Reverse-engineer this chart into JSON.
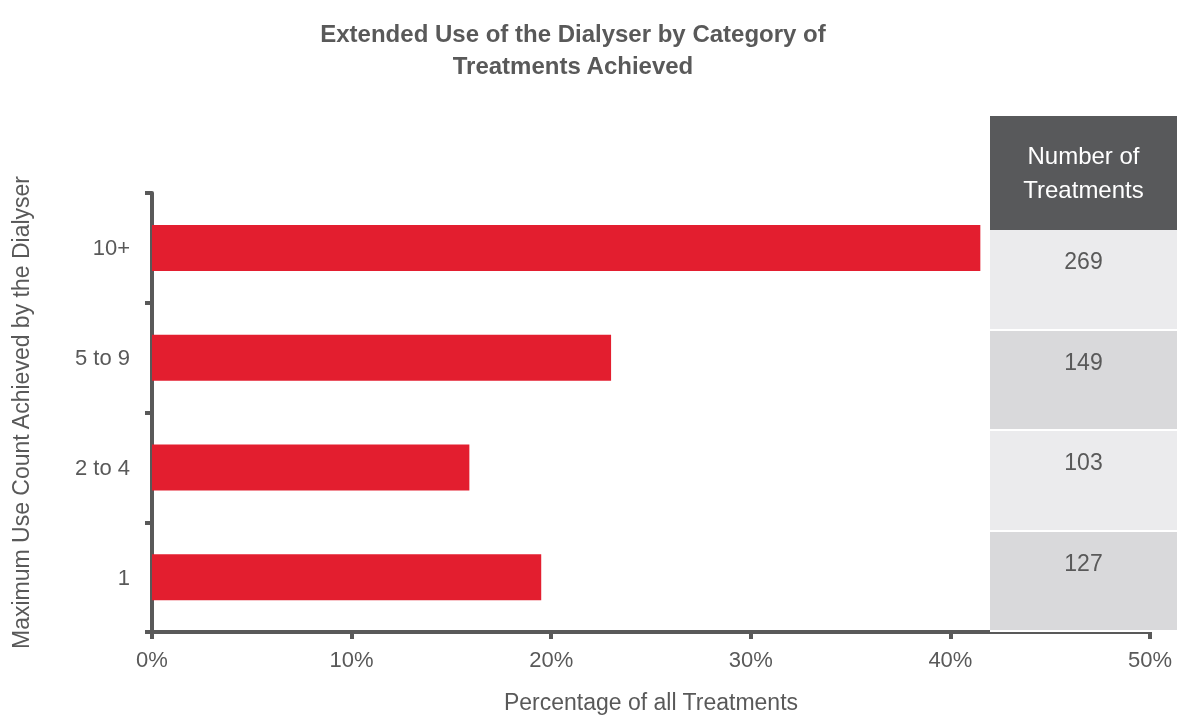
{
  "chart_data": {
    "type": "bar",
    "orientation": "horizontal",
    "title": "Extended Use of the Dialyser by Category of\nTreatments Achieved",
    "xlabel": "Percentage of all Treatments",
    "ylabel": "Maximum Use Count Achieved by the Dialyser",
    "categories": [
      "10+",
      "5 to 9",
      "2 to 4",
      "1"
    ],
    "values": [
      41.5,
      23.0,
      15.9,
      19.5
    ],
    "color": "#e31e2f",
    "annotations": [
      "Number of Treatments",
      "269",
      "149",
      "103",
      "127"
    ],
    "xlim": [
      0,
      50
    ],
    "xticks": [
      {
        "value": 0,
        "label": "0%"
      },
      {
        "value": 10,
        "label": "10%"
      },
      {
        "value": 20,
        "label": "20%"
      },
      {
        "value": 30,
        "label": "30%"
      },
      {
        "value": 40,
        "label": "40%"
      },
      {
        "value": 50,
        "label": "50%"
      }
    ],
    "grid": false
  }
}
